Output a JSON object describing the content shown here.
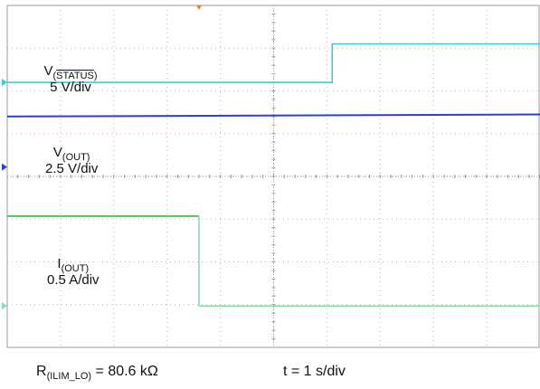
{
  "chart_data": {
    "type": "line",
    "xlabel": "",
    "ylabel": "",
    "grid": true,
    "divisions": {
      "x": 10,
      "y": 8
    },
    "x_divs": [
      0,
      10
    ],
    "y_divs": [
      0,
      8
    ],
    "series": [
      {
        "name": "",
        "color": "#3ec9d6",
        "points": [
          [
            0,
            6.2
          ],
          [
            6.1,
            6.2
          ],
          [
            6.1,
            7.1
          ],
          [
            10,
            7.1
          ]
        ]
      },
      {
        "name": "",
        "color": "#2f3fcc",
        "points": [
          [
            0,
            5.4
          ],
          [
            10,
            5.45
          ]
        ]
      },
      {
        "name": "",
        "color": "#39b54a",
        "points": [
          [
            0,
            3.07
          ],
          [
            3.6,
            3.07
          ]
        ]
      },
      {
        "name": "",
        "color": "#8fd9b0",
        "points": [
          [
            3.6,
            3.07
          ],
          [
            3.6,
            0.97
          ],
          [
            10,
            0.97
          ]
        ]
      }
    ],
    "trigger_x": 3.6
  },
  "labels": {
    "status": {
      "prefix": "V",
      "sub_open": "(",
      "sub_over": "STATUS",
      "sub_close": ")",
      "scale": "5 V/div"
    },
    "out_v": {
      "prefix": "V",
      "sub": "(OUT)",
      "scale": "2.5 V/div"
    },
    "out_i": {
      "prefix": "I",
      "sub": "(OUT)",
      "scale": "0.5 A/div"
    }
  },
  "footer": {
    "r_prefix": "R",
    "r_sub": "(ILIM_LO)",
    "r_value": " = 80.6 kΩ",
    "time": "t = 1 s/div"
  }
}
